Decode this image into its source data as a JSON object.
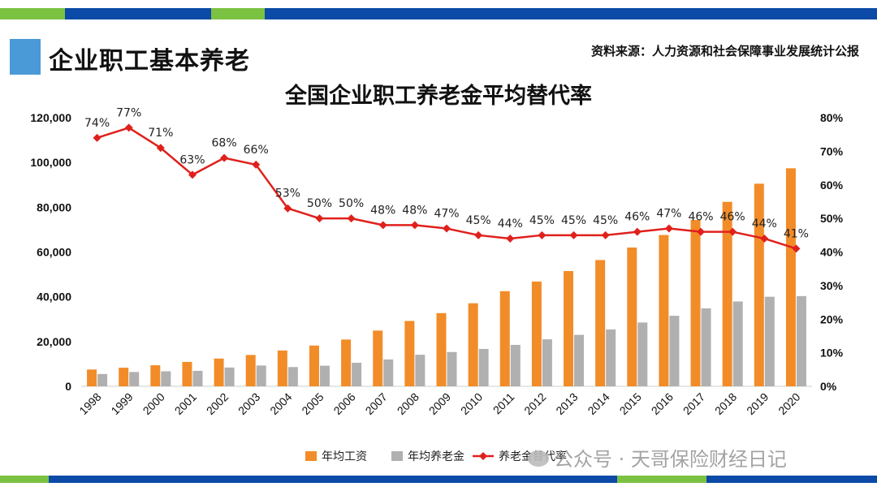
{
  "header": {
    "section_title": "企业职工基本养老",
    "source": "资料来源：人力资源和社会保障事业发展统计公报"
  },
  "watermark": "公众号 · 天哥保险财经日记",
  "colors": {
    "wage": "#f28c28",
    "pension": "#b0b0b0",
    "rate": "#e0201c",
    "accent": "#4a9ad8",
    "bar_blue": "#0b4aa6",
    "bar_green": "#7cc242"
  },
  "chart_data": {
    "type": "bar",
    "title": "全国企业职工养老金平均替代率",
    "categories": [
      "1998",
      "1999",
      "2000",
      "2001",
      "2002",
      "2003",
      "2004",
      "2005",
      "2006",
      "2007",
      "2008",
      "2009",
      "2010",
      "2011",
      "2012",
      "2013",
      "2014",
      "2015",
      "2016",
      "2017",
      "2018",
      "2019",
      "2020"
    ],
    "series": [
      {
        "name": "年均工资",
        "type": "bar",
        "axis": "left",
        "values": [
          7500,
          8300,
          9400,
          10900,
          12400,
          14000,
          16000,
          18200,
          20900,
          24900,
          29200,
          32700,
          37100,
          42500,
          46800,
          51500,
          56400,
          62000,
          67600,
          74300,
          82400,
          90500,
          97400
        ]
      },
      {
        "name": "年均养老金",
        "type": "bar",
        "axis": "left",
        "values": [
          5500,
          6400,
          6700,
          6900,
          8400,
          9300,
          8600,
          9200,
          10500,
          12000,
          14100,
          15300,
          16700,
          18500,
          21000,
          23000,
          25400,
          28500,
          31500,
          34800,
          37900,
          40000,
          40300
        ]
      },
      {
        "name": "养老金替代率",
        "type": "line",
        "axis": "right",
        "values": [
          74,
          77,
          71,
          63,
          68,
          66,
          53,
          50,
          50,
          48,
          48,
          47,
          45,
          44,
          45,
          45,
          45,
          46,
          47,
          46,
          46,
          44,
          41
        ],
        "labels": [
          "74%",
          "77%",
          "71%",
          "63%",
          "68%",
          "66%",
          "53%",
          "50%",
          "50%",
          "48%",
          "48%",
          "47%",
          "45%",
          "44%",
          "45%",
          "45%",
          "45%",
          "46%",
          "47%",
          "46%",
          "46%",
          "44%",
          "41%"
        ]
      }
    ],
    "y_left": {
      "min": 0,
      "max": 120000,
      "ticks": [
        "0",
        "20,000",
        "40,000",
        "60,000",
        "80,000",
        "100,000",
        "120,000"
      ]
    },
    "y_right": {
      "min": 0,
      "max": 80,
      "ticks": [
        "0%",
        "10%",
        "20%",
        "30%",
        "40%",
        "50%",
        "60%",
        "70%",
        "80%"
      ]
    },
    "legend_position": "bottom-center",
    "grid": false
  }
}
